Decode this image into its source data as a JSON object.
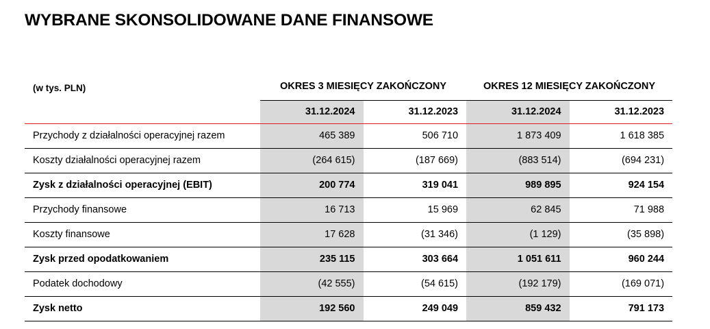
{
  "title": "WYBRANE SKONSOLIDOWANE DANE FINANSOWE",
  "table": {
    "unit_label": "(w tys. PLN)",
    "period_headers": [
      "OKRES 3 MIESIĘCY ZAKOŃCZONY",
      "OKRES 12 MIESIĘCY ZAKOŃCZONY"
    ],
    "date_headers": [
      "31.12.2024",
      "31.12.2023",
      "31.12.2024",
      "31.12.2023"
    ],
    "rows": [
      {
        "label": "Przychody z działalności operacyjnej razem",
        "values": [
          "465 389",
          "506 710",
          "1 873 409",
          "1 618 385"
        ],
        "bold": false
      },
      {
        "label": "Koszty działalności operacyjnej razem",
        "values": [
          "(264 615)",
          "(187 669)",
          "(883 514)",
          "(694 231)"
        ],
        "bold": false
      },
      {
        "label": "Zysk z działalności operacyjnej (EBIT)",
        "values": [
          "200 774",
          "319 041",
          "989 895",
          "924 154"
        ],
        "bold": true
      },
      {
        "label": "Przychody finansowe",
        "values": [
          "16 713",
          "15 969",
          "62 845",
          "71 988"
        ],
        "bold": false
      },
      {
        "label": "Koszty finansowe",
        "values": [
          "17 628",
          "(31 346)",
          "(1 129)",
          "(35 898)"
        ],
        "bold": false
      },
      {
        "label": "Zysk przed opodatkowaniem",
        "values": [
          "235 115",
          "303 664",
          "1 051 611",
          "960 244"
        ],
        "bold": true
      },
      {
        "label": "Podatek dochodowy",
        "values": [
          "(42 555)",
          "(54 615)",
          "(192 179)",
          "(169 071)"
        ],
        "bold": false
      },
      {
        "label": "Zysk netto",
        "values": [
          "192 560",
          "249 049",
          "859 432",
          "791 173"
        ],
        "bold": true
      }
    ]
  },
  "colors": {
    "shaded_column": "#d9d9d9",
    "header_rule": "#e01b1b",
    "row_rule": "#000000"
  }
}
